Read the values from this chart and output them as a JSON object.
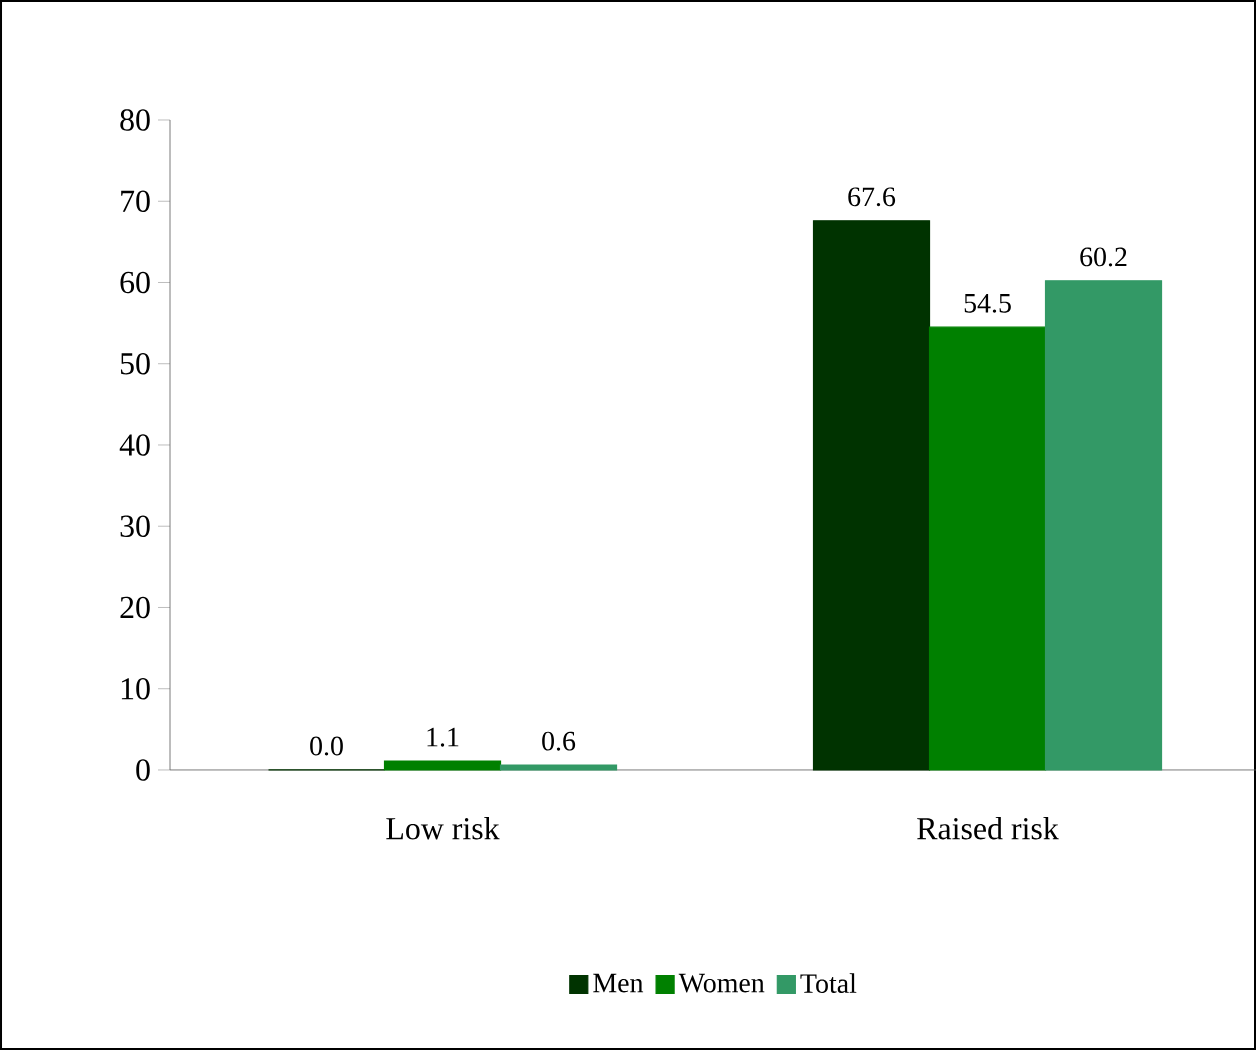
{
  "chart_data": {
    "type": "bar",
    "categories": [
      "Low risk",
      "Raised risk"
    ],
    "series": [
      {
        "name": "Men",
        "color": "#003300",
        "values": [
          0.0,
          67.6
        ],
        "value_labels": [
          "0.0",
          "67.6"
        ]
      },
      {
        "name": "Women",
        "color": "#008000",
        "values": [
          1.1,
          54.5
        ],
        "value_labels": [
          "1.1",
          "54.5"
        ]
      },
      {
        "name": "Total",
        "color": "#339966",
        "values": [
          0.6,
          60.2
        ],
        "value_labels": [
          "0.6",
          "60.2"
        ]
      }
    ],
    "ylim": [
      0,
      80
    ],
    "yticks": [
      0,
      10,
      20,
      30,
      40,
      50,
      60,
      70,
      80
    ],
    "grid": false,
    "legend": "bottom"
  }
}
